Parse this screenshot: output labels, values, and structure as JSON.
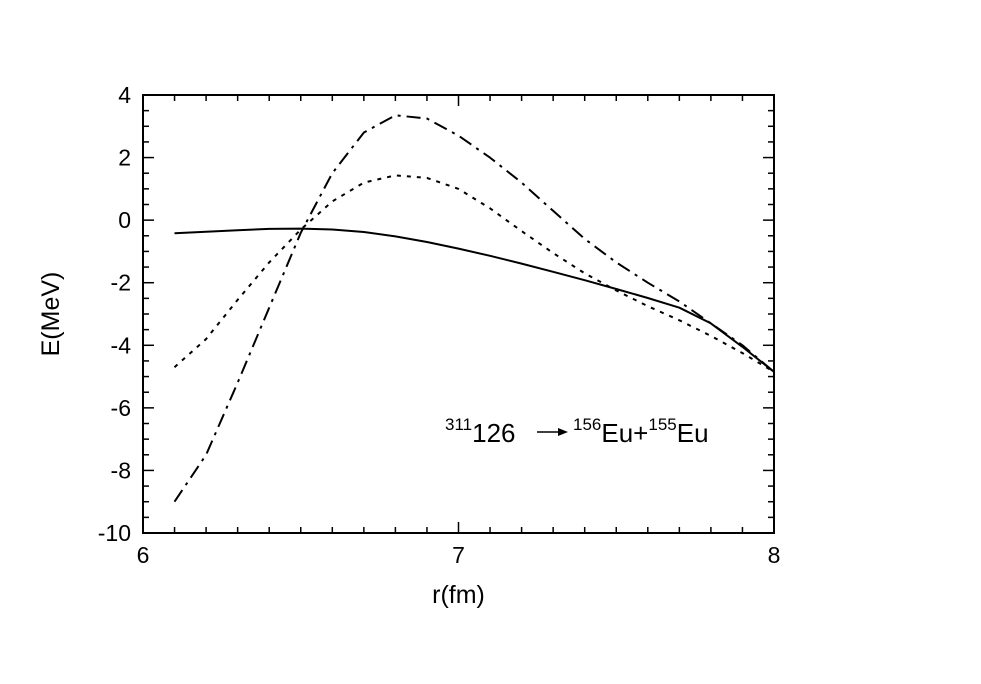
{
  "chart_data": {
    "type": "line",
    "title": "",
    "xlabel": "r(fm)",
    "ylabel": "E(MeV)",
    "xlim": [
      6,
      8
    ],
    "ylim": [
      -10,
      4
    ],
    "x_ticks": [
      6,
      7,
      8
    ],
    "x_tick_labels": [
      "6",
      "7",
      "8"
    ],
    "y_ticks": [
      4,
      2,
      0,
      -2,
      -4,
      -6,
      -8,
      -10
    ],
    "y_tick_labels": [
      "4",
      "2",
      "0",
      "-2",
      "-4",
      "-6",
      "-8",
      "-10"
    ],
    "grid": false,
    "legend": "none",
    "annotation": {
      "parent_mass": "311",
      "parent": "126",
      "arrow": "→",
      "frag1_mass": "156",
      "frag1": "Eu+",
      "frag2_mass": "155",
      "frag2": "Eu"
    },
    "series": [
      {
        "style": "solid",
        "x": [
          6.1,
          6.2,
          6.3,
          6.4,
          6.5,
          6.6,
          6.7,
          6.8,
          6.9,
          7.0,
          7.1,
          7.2,
          7.3,
          7.4,
          7.5,
          7.6,
          7.7,
          7.8,
          7.9,
          8.0
        ],
        "y": [
          -0.42,
          -0.37,
          -0.32,
          -0.28,
          -0.27,
          -0.3,
          -0.38,
          -0.52,
          -0.7,
          -0.91,
          -1.14,
          -1.39,
          -1.65,
          -1.92,
          -2.2,
          -2.49,
          -2.8,
          -3.3,
          -4.05,
          -4.85
        ]
      },
      {
        "style": "dotted",
        "x": [
          6.1,
          6.2,
          6.3,
          6.4,
          6.5,
          6.6,
          6.7,
          6.8,
          6.9,
          7.0,
          7.1,
          7.2,
          7.3,
          7.4,
          7.5,
          7.6,
          7.7,
          7.8,
          7.9,
          8.0
        ],
        "y": [
          -4.7,
          -3.8,
          -2.55,
          -1.35,
          -0.3,
          0.6,
          1.2,
          1.43,
          1.35,
          1.0,
          0.38,
          -0.35,
          -1.05,
          -1.7,
          -2.25,
          -2.75,
          -3.2,
          -3.7,
          -4.25,
          -4.85
        ]
      },
      {
        "style": "dash-dot",
        "x": [
          6.1,
          6.2,
          6.3,
          6.4,
          6.5,
          6.6,
          6.7,
          6.8,
          6.9,
          7.0,
          7.1,
          7.2,
          7.3,
          7.4,
          7.5,
          7.6,
          7.7,
          7.8,
          7.9,
          8.0
        ],
        "y": [
          -9.0,
          -7.5,
          -5.2,
          -2.8,
          -0.4,
          1.5,
          2.8,
          3.35,
          3.25,
          2.7,
          2.0,
          1.2,
          0.3,
          -0.6,
          -1.35,
          -2.0,
          -2.6,
          -3.3,
          -4.0,
          -4.85
        ]
      }
    ]
  }
}
